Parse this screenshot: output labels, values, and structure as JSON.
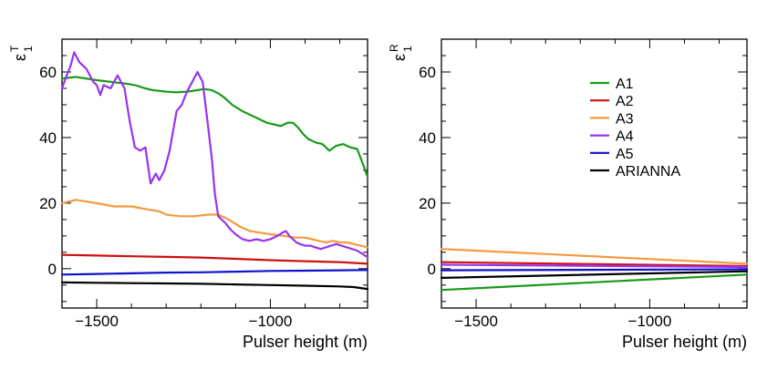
{
  "chart_data": [
    {
      "type": "line",
      "panel": "left",
      "ylabel": "ε",
      "ylabel_sub": "1",
      "ylabel_sup": "T",
      "xlabel": "Pulser height (m)",
      "xlim": [
        -1600,
        -720
      ],
      "ylim": [
        -12,
        70
      ],
      "xticks": [
        -1500,
        -1000
      ],
      "xtick_labels": [
        "−1500",
        "−1000"
      ],
      "yticks": [
        0,
        20,
        40,
        60
      ],
      "ytick_labels": [
        "0",
        "20",
        "40",
        "60"
      ],
      "series": [
        {
          "name": "A1",
          "color": "#1a9a1a",
          "x": [
            -1600,
            -1560,
            -1500,
            -1460,
            -1420,
            -1390,
            -1360,
            -1340,
            -1300,
            -1270,
            -1240,
            -1220,
            -1190,
            -1170,
            -1150,
            -1130,
            -1110,
            -1080,
            -1060,
            -1040,
            -1010,
            -990,
            -970,
            -950,
            -935,
            -920,
            -905,
            -890,
            -870,
            -850,
            -830,
            -810,
            -790,
            -770,
            -750,
            -730,
            -720
          ],
          "y": [
            58,
            58.5,
            57.5,
            57,
            56.5,
            56,
            55,
            54.5,
            54,
            53.8,
            54,
            54.3,
            54.8,
            54.5,
            53.5,
            52,
            50,
            48,
            47,
            46,
            44.5,
            44,
            43.5,
            44.5,
            44.5,
            43,
            41,
            39.5,
            38.5,
            38,
            36,
            37.5,
            38,
            37,
            36.5,
            31,
            28
          ]
        },
        {
          "name": "A2",
          "color": "#cc1111",
          "x": [
            -1600,
            -1500,
            -1400,
            -1300,
            -1200,
            -1100,
            -1000,
            -900,
            -800,
            -720
          ],
          "y": [
            4.2,
            4.0,
            3.8,
            3.6,
            3.4,
            3.0,
            2.6,
            2.3,
            2.0,
            1.5
          ]
        },
        {
          "name": "A3",
          "color": "#f49a40",
          "x": [
            -1600,
            -1560,
            -1500,
            -1450,
            -1400,
            -1350,
            -1320,
            -1300,
            -1260,
            -1220,
            -1180,
            -1150,
            -1120,
            -1090,
            -1060,
            -1030,
            -1000,
            -960,
            -930,
            -900,
            -880,
            -860,
            -840,
            -820,
            -800,
            -780,
            -760,
            -740,
            -720
          ],
          "y": [
            20,
            21,
            20,
            19,
            19,
            18,
            17.5,
            16.5,
            16,
            16,
            16.5,
            16.5,
            15,
            13,
            11.5,
            11,
            10.5,
            10,
            9.5,
            9.5,
            9,
            8.5,
            8,
            8.5,
            8,
            8,
            7.5,
            7,
            6.5
          ]
        },
        {
          "name": "A4",
          "color": "#9933ee",
          "x": [
            -1600,
            -1590,
            -1575,
            -1565,
            -1550,
            -1530,
            -1510,
            -1500,
            -1490,
            -1480,
            -1460,
            -1440,
            -1420,
            -1405,
            -1390,
            -1375,
            -1360,
            -1345,
            -1330,
            -1320,
            -1305,
            -1290,
            -1280,
            -1270,
            -1255,
            -1240,
            -1225,
            -1210,
            -1195,
            -1180,
            -1168,
            -1160,
            -1150,
            -1140,
            -1130,
            -1115,
            -1100,
            -1080,
            -1060,
            -1040,
            -1020,
            -1000,
            -980,
            -965,
            -955,
            -945,
            -935,
            -925,
            -915,
            -900,
            -885,
            -870,
            -855,
            -840,
            -825,
            -810,
            -795,
            -780,
            -765,
            -750,
            -735,
            -720
          ],
          "y": [
            55,
            58,
            62,
            66,
            63,
            61,
            57,
            56,
            53,
            56,
            55,
            59,
            55,
            45,
            37,
            36,
            37,
            26,
            29,
            27,
            30,
            36,
            42,
            48,
            50,
            54,
            57,
            60,
            57,
            44,
            33,
            23,
            16,
            15,
            14,
            12,
            10.5,
            9,
            8.5,
            9,
            8.5,
            9,
            10,
            11,
            11.5,
            10,
            9,
            8,
            7.5,
            7,
            7,
            6.5,
            6,
            6.5,
            7,
            7.5,
            7,
            6.5,
            6,
            5.5,
            4.5,
            3.5
          ]
        },
        {
          "name": "A5",
          "color": "#1111cc",
          "x": [
            -1600,
            -1500,
            -1400,
            -1300,
            -1200,
            -1100,
            -1000,
            -900,
            -800,
            -720
          ],
          "y": [
            -1.8,
            -1.6,
            -1.4,
            -1.2,
            -1.1,
            -0.9,
            -0.7,
            -0.6,
            -0.5,
            -0.4
          ]
        },
        {
          "name": "ARIANNA",
          "color": "#000000",
          "x": [
            -1600,
            -1500,
            -1400,
            -1300,
            -1200,
            -1100,
            -1000,
            -900,
            -800,
            -760,
            -720
          ],
          "y": [
            -4.2,
            -4.3,
            -4.4,
            -4.5,
            -4.6,
            -4.8,
            -5.0,
            -5.2,
            -5.4,
            -5.6,
            -6.2
          ]
        }
      ]
    },
    {
      "type": "line",
      "panel": "right",
      "ylabel": "ε",
      "ylabel_sub": "1",
      "ylabel_sup": "R",
      "xlabel": "Pulser height (m)",
      "xlim": [
        -1600,
        -720
      ],
      "ylim": [
        -12,
        70
      ],
      "xticks": [
        -1500,
        -1000
      ],
      "xtick_labels": [
        "−1500",
        "−1000"
      ],
      "yticks": [
        0,
        20,
        40,
        60
      ],
      "ytick_labels": [
        "0",
        "20",
        "40",
        "60"
      ],
      "legend_position": "upper-center",
      "series": [
        {
          "name": "A1",
          "color": "#1a9a1a",
          "x": [
            -1600,
            -720
          ],
          "y": [
            -6.5,
            -1.8
          ]
        },
        {
          "name": "A2",
          "color": "#cc1111",
          "x": [
            -1600,
            -720
          ],
          "y": [
            2.0,
            0.8
          ]
        },
        {
          "name": "A3",
          "color": "#f49a40",
          "x": [
            -1600,
            -720
          ],
          "y": [
            6.0,
            1.5
          ]
        },
        {
          "name": "A4",
          "color": "#9933ee",
          "x": [
            -1600,
            -720
          ],
          "y": [
            1.2,
            0.5
          ]
        },
        {
          "name": "A5",
          "color": "#1111cc",
          "x": [
            -1600,
            -720
          ],
          "y": [
            -0.5,
            -0.2
          ]
        },
        {
          "name": "ARIANNA",
          "color": "#000000",
          "x": [
            -1600,
            -720
          ],
          "y": [
            -2.8,
            -0.8
          ]
        }
      ]
    }
  ]
}
